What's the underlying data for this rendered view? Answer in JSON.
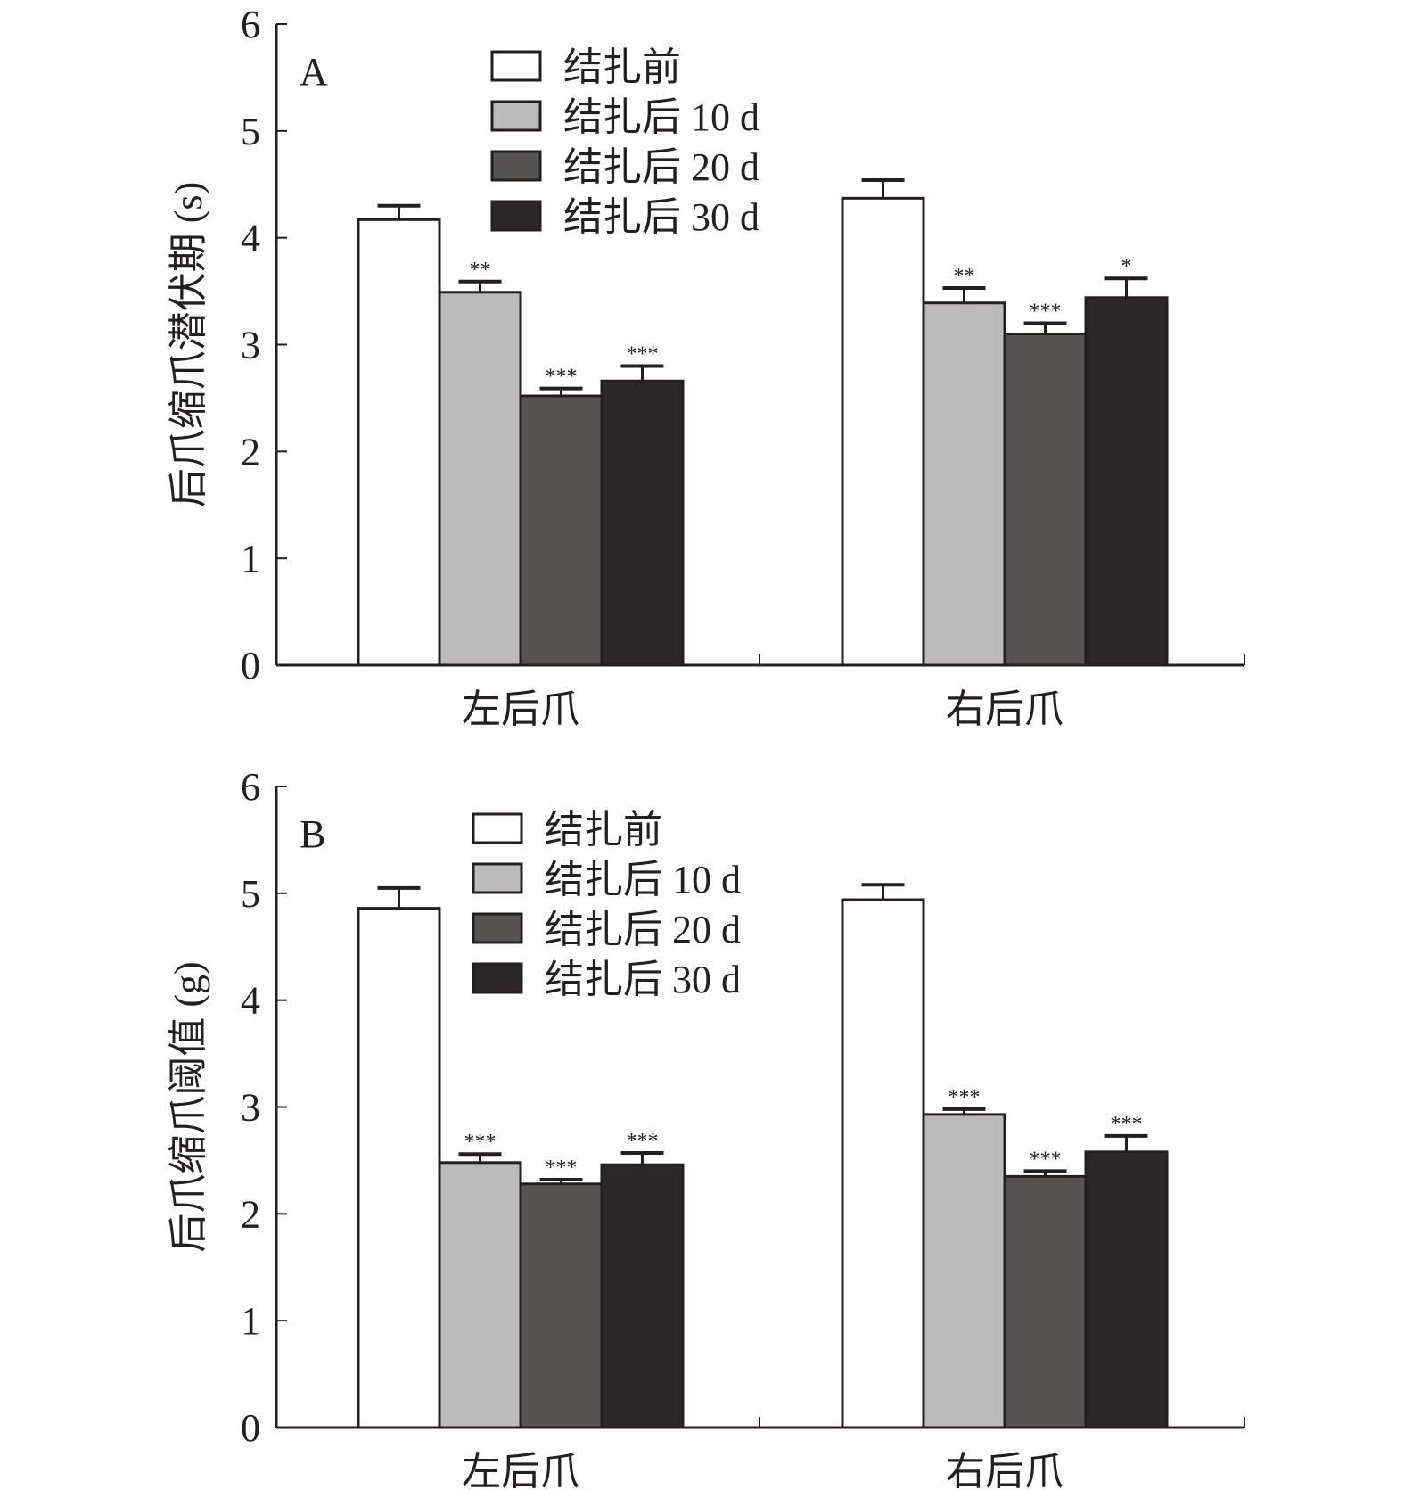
{
  "chart_data": [
    {
      "type": "bar",
      "panel_label": "A",
      "ylabel": "后爪缩爪潜伏期 (s)",
      "categories": [
        "左后爪",
        "右后爪"
      ],
      "ylim": [
        0,
        6
      ],
      "yticks": [
        "0",
        "1",
        "2",
        "3",
        "4",
        "5",
        "6"
      ],
      "legend_position": "top-center",
      "series": [
        {
          "name": "结扎前",
          "color": "#ffffff",
          "values": [
            4.17,
            4.37
          ],
          "errors": [
            0.13,
            0.17
          ],
          "significance": [
            "",
            ""
          ]
        },
        {
          "name": "结扎后 10 d",
          "color": "#bcbbbb",
          "values": [
            3.49,
            3.39
          ],
          "errors": [
            0.1,
            0.14
          ],
          "significance": [
            "**",
            "**"
          ]
        },
        {
          "name": "结扎后 20 d",
          "color": "#555453",
          "values": [
            2.52,
            3.1
          ],
          "errors": [
            0.07,
            0.1
          ],
          "significance": [
            "***",
            "***"
          ]
        },
        {
          "name": "结扎后 30 d",
          "color": "#2c2829",
          "values": [
            2.66,
            3.44
          ],
          "errors": [
            0.14,
            0.18
          ],
          "significance": [
            "***",
            "*"
          ]
        }
      ]
    },
    {
      "type": "bar",
      "panel_label": "B",
      "ylabel": "后爪缩爪阈值 (g)",
      "categories": [
        "左后爪",
        "右后爪"
      ],
      "ylim": [
        0,
        6
      ],
      "yticks": [
        "0",
        "1",
        "2",
        "3",
        "4",
        "5",
        "6"
      ],
      "legend_position": "top-center",
      "series": [
        {
          "name": "结扎前",
          "color": "#ffffff",
          "values": [
            4.86,
            4.94
          ],
          "errors": [
            0.19,
            0.14
          ],
          "significance": [
            "",
            ""
          ]
        },
        {
          "name": "结扎后 10 d",
          "color": "#bcbbbb",
          "values": [
            2.48,
            2.93
          ],
          "errors": [
            0.08,
            0.05
          ],
          "significance": [
            "***",
            "***"
          ]
        },
        {
          "name": "结扎后 20 d",
          "color": "#555453",
          "values": [
            2.28,
            2.35
          ],
          "errors": [
            0.04,
            0.05
          ],
          "significance": [
            "***",
            "***"
          ]
        },
        {
          "name": "结扎后 30 d",
          "color": "#2c2829",
          "values": [
            2.46,
            2.58
          ],
          "errors": [
            0.11,
            0.15
          ],
          "significance": [
            "***",
            "***"
          ]
        }
      ]
    }
  ]
}
